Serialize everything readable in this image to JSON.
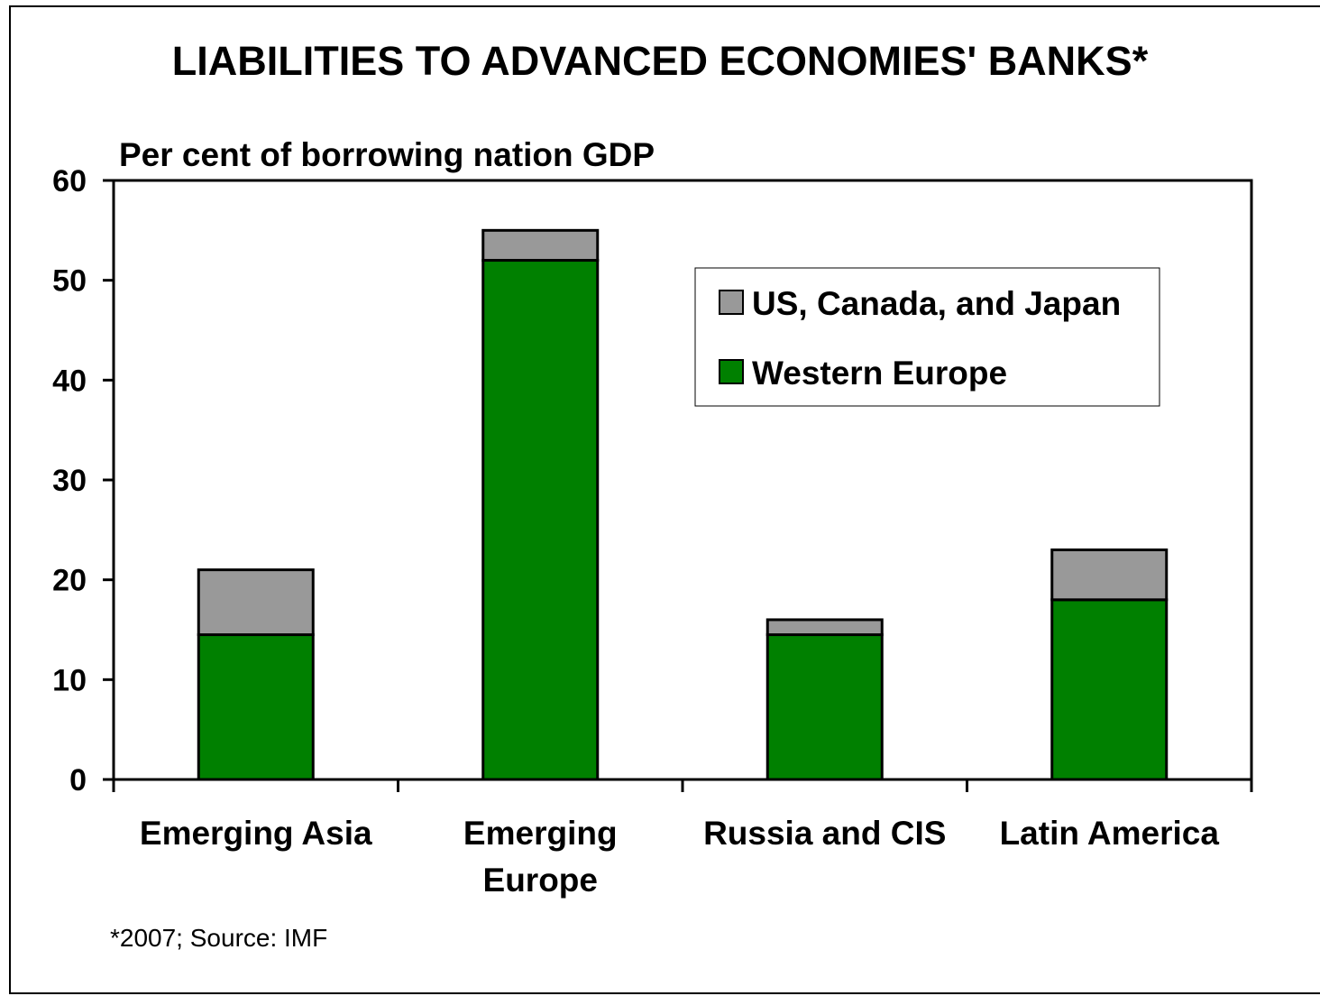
{
  "chart_data": {
    "type": "bar",
    "stacked": true,
    "title": "LIABILITIES TO ADVANCED ECONOMIES' BANKS*",
    "ylabel": "Per cent of borrowing nation GDP",
    "xlabel": "",
    "ylim": [
      0,
      60
    ],
    "yticks": [
      "0",
      "10",
      "20",
      "30",
      "40",
      "50",
      "60"
    ],
    "ytick_values": [
      0,
      10,
      20,
      30,
      40,
      50,
      60
    ],
    "categories": [
      [
        "Emerging Asia"
      ],
      [
        "Emerging",
        "Europe"
      ],
      [
        "Russia and CIS"
      ],
      [
        "Latin America"
      ]
    ],
    "series": [
      {
        "name": "Western Europe",
        "values": [
          14.5,
          52,
          14.5,
          18
        ],
        "color": "#008000"
      },
      {
        "name": "US, Canada, and Japan",
        "values": [
          6.5,
          3,
          1.5,
          5
        ],
        "color": "#999999"
      }
    ],
    "legend": {
      "placement": "top-right",
      "order": [
        "US, Canada, and Japan",
        "Western Europe"
      ]
    },
    "grid": false,
    "footnote": "*2007; Source: IMF"
  }
}
